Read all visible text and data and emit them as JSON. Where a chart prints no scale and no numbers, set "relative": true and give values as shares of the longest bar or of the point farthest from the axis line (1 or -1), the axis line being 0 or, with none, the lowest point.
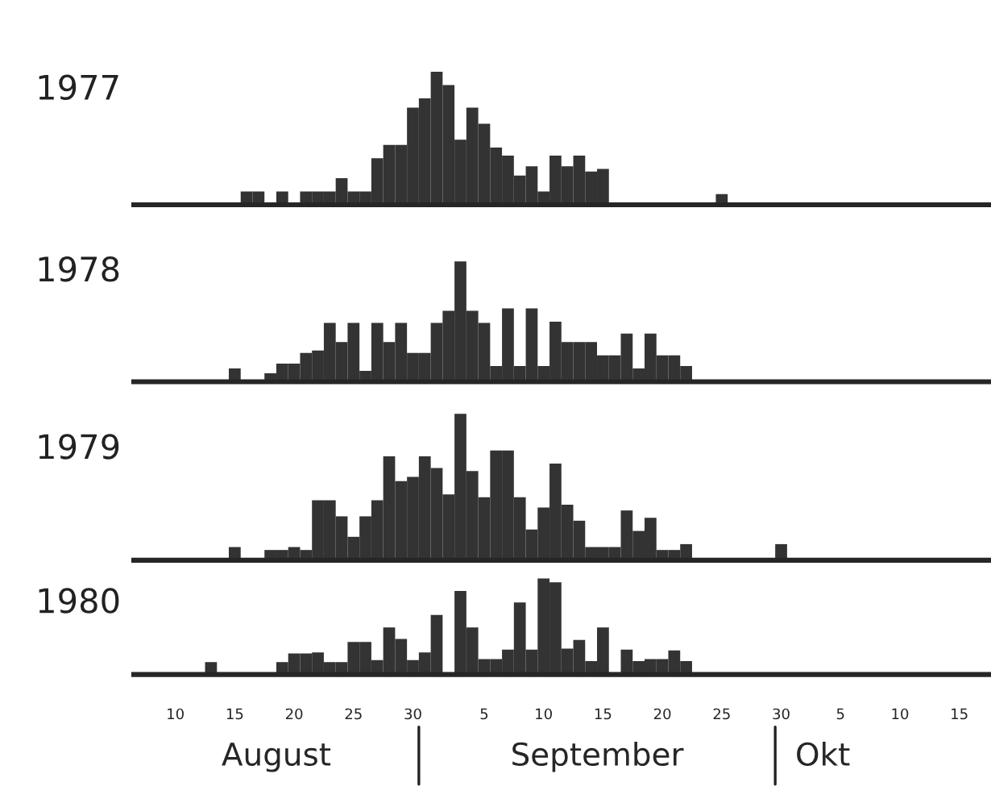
{
  "chart_data": [
    {
      "type": "bar",
      "title": "1977",
      "relative": true,
      "tick_labels": false,
      "color": "#333333",
      "categories": [
        null,
        null,
        null,
        "10",
        null,
        null,
        null,
        null,
        "15",
        null,
        null,
        null,
        null,
        "20",
        null,
        null,
        null,
        null,
        "25",
        null,
        null,
        null,
        null,
        "30",
        null,
        null,
        null,
        null,
        null,
        "5",
        null,
        null,
        null,
        null,
        "10",
        null,
        null,
        null,
        null,
        "15",
        null,
        null,
        null,
        null,
        "20",
        null,
        null,
        null,
        null,
        "25",
        null,
        null,
        null,
        null,
        "30",
        null,
        null,
        null,
        null,
        "5",
        null,
        null,
        null,
        null,
        "10",
        null,
        null,
        null,
        null,
        "15",
        null,
        null
      ],
      "values": [
        0,
        0,
        0,
        0,
        0,
        0,
        0,
        0,
        0,
        0.1,
        0.1,
        0,
        0.1,
        0,
        0.1,
        0.1,
        0.1,
        0.2,
        0.1,
        0.1,
        0.35,
        0.45,
        0.45,
        0.73,
        0.8,
        1,
        0.9,
        0.49,
        0.73,
        0.61,
        0.43,
        0.37,
        0.22,
        0.29,
        0.1,
        0.37,
        0.29,
        0.37,
        0.25,
        0.27,
        0,
        0,
        0,
        0,
        0,
        0,
        0,
        0,
        0,
        0.08,
        0,
        0,
        0,
        0,
        0,
        0,
        0,
        0,
        0,
        0,
        0,
        0,
        0,
        0,
        0,
        0,
        0,
        0,
        0,
        0,
        0,
        0
      ]
    },
    {
      "type": "bar",
      "title": "1978",
      "relative": true,
      "tick_labels": false,
      "color": "#333333",
      "categories": [
        null,
        null,
        null,
        "10",
        null,
        null,
        null,
        null,
        "15",
        null,
        null,
        null,
        null,
        "20",
        null,
        null,
        null,
        null,
        "25",
        null,
        null,
        null,
        null,
        "30",
        null,
        null,
        null,
        null,
        null,
        "5",
        null,
        null,
        null,
        null,
        "10",
        null,
        null,
        null,
        null,
        "15",
        null,
        null,
        null,
        null,
        "20",
        null,
        null,
        null,
        null,
        "25",
        null,
        null,
        null,
        null,
        "30",
        null,
        null,
        null,
        null,
        "5",
        null,
        null,
        null,
        null,
        "10",
        null,
        null,
        null,
        null,
        "15",
        null,
        null
      ],
      "values": [
        0,
        0,
        0,
        0,
        0,
        0,
        0,
        0,
        0.11,
        0,
        0,
        0.07,
        0.15,
        0.15,
        0.24,
        0.26,
        0.49,
        0.33,
        0.49,
        0.09,
        0.49,
        0.33,
        0.49,
        0.24,
        0.24,
        0.49,
        0.59,
        1,
        0.59,
        0.49,
        0.13,
        0.61,
        0.13,
        0.61,
        0.13,
        0.5,
        0.33,
        0.33,
        0.33,
        0.22,
        0.22,
        0.4,
        0.11,
        0.4,
        0.22,
        0.22,
        0.13,
        0,
        0,
        0,
        0,
        0,
        0,
        0,
        0,
        0,
        0,
        0,
        0,
        0,
        0,
        0,
        0,
        0,
        0,
        0,
        0,
        0,
        0,
        0,
        0,
        0
      ]
    },
    {
      "type": "bar",
      "title": "1979",
      "relative": true,
      "tick_labels": false,
      "color": "#333333",
      "categories": [
        null,
        null,
        null,
        "10",
        null,
        null,
        null,
        null,
        "15",
        null,
        null,
        null,
        null,
        "20",
        null,
        null,
        null,
        null,
        "25",
        null,
        null,
        null,
        null,
        "30",
        null,
        null,
        null,
        null,
        null,
        "5",
        null,
        null,
        null,
        null,
        "10",
        null,
        null,
        null,
        null,
        "15",
        null,
        null,
        null,
        null,
        "20",
        null,
        null,
        null,
        null,
        "25",
        null,
        null,
        null,
        null,
        "30",
        null,
        null,
        null,
        null,
        "5",
        null,
        null,
        null,
        null,
        "10",
        null,
        null,
        null,
        null,
        "15",
        null,
        null
      ],
      "values": [
        0,
        0,
        0,
        0,
        0,
        0,
        0,
        0,
        0.09,
        0,
        0,
        0.07,
        0.07,
        0.09,
        0.07,
        0.41,
        0.41,
        0.3,
        0.16,
        0.3,
        0.41,
        0.71,
        0.54,
        0.57,
        0.71,
        0.63,
        0.45,
        1,
        0.61,
        0.43,
        0.75,
        0.75,
        0.43,
        0.21,
        0.36,
        0.66,
        0.38,
        0.27,
        0.09,
        0.09,
        0.09,
        0.34,
        0.2,
        0.29,
        0.07,
        0.07,
        0.11,
        0,
        0,
        0,
        0,
        0,
        0,
        0,
        0.11,
        0,
        0,
        0,
        0,
        0,
        0,
        0,
        0,
        0,
        0,
        0,
        0,
        0,
        0,
        0,
        0,
        0
      ]
    },
    {
      "type": "bar",
      "title": "1980",
      "relative": true,
      "color": "#333333",
      "categories": [
        null,
        null,
        null,
        "10",
        null,
        null,
        null,
        null,
        "15",
        null,
        null,
        null,
        null,
        "20",
        null,
        null,
        null,
        null,
        "25",
        null,
        null,
        null,
        null,
        "30",
        null,
        null,
        null,
        null,
        null,
        "5",
        null,
        null,
        null,
        null,
        "10",
        null,
        null,
        null,
        null,
        "15",
        null,
        null,
        null,
        null,
        "20",
        null,
        null,
        null,
        null,
        "25",
        null,
        null,
        null,
        null,
        "30",
        null,
        null,
        null,
        null,
        "5",
        null,
        null,
        null,
        null,
        "10",
        null,
        null,
        null,
        null,
        "15",
        null,
        null
      ],
      "values": [
        0,
        0,
        0,
        0,
        0,
        0,
        0.13,
        0,
        0,
        0,
        0,
        0,
        0.13,
        0.22,
        0.22,
        0.23,
        0.13,
        0.13,
        0.34,
        0.34,
        0.15,
        0.49,
        0.37,
        0.15,
        0.23,
        0.62,
        0,
        0.87,
        0.49,
        0.16,
        0.16,
        0.26,
        0.75,
        0.26,
        1,
        0.96,
        0.27,
        0.36,
        0.14,
        0.49,
        0,
        0.26,
        0.14,
        0.16,
        0.16,
        0.25,
        0.14,
        0,
        0,
        0,
        0,
        0,
        0,
        0,
        0,
        0,
        0,
        0,
        0,
        0,
        0,
        0,
        0,
        0,
        0,
        0,
        0,
        0,
        0,
        0,
        0,
        0
      ],
      "annotations": [
        "August",
        "September",
        "Okt"
      ]
    }
  ]
}
